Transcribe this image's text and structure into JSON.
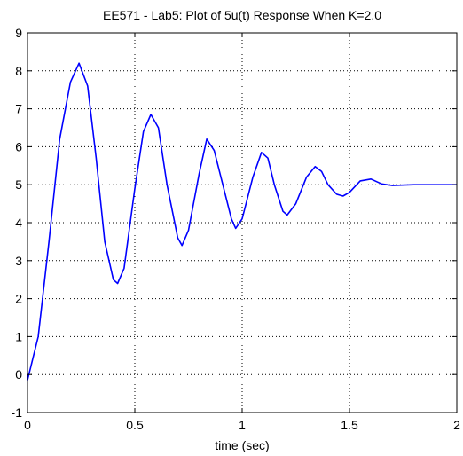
{
  "chart_data": {
    "type": "line",
    "title": "EE571 - Lab5:  Plot of 5u(t) Response When K=2.0",
    "xlabel": "time (sec)",
    "ylabel": "",
    "xlim": [
      0,
      2
    ],
    "ylim": [
      -1,
      9
    ],
    "xticks": [
      0,
      0.5,
      1,
      1.5,
      2
    ],
    "xtick_labels": [
      "0",
      "0.5",
      "1",
      "1.5",
      "2"
    ],
    "yticks": [
      -1,
      0,
      1,
      2,
      3,
      4,
      5,
      6,
      7,
      8,
      9
    ],
    "ytick_labels": [
      "-1",
      "0",
      "1",
      "2",
      "3",
      "4",
      "5",
      "6",
      "7",
      "8",
      "9"
    ],
    "grid": true,
    "grid_style": "dotted",
    "line_color": "#0000ff",
    "series": [
      {
        "x": [
          0,
          0.05,
          0.1,
          0.15,
          0.2,
          0.24,
          0.28,
          0.32,
          0.36,
          0.4,
          0.42,
          0.45,
          0.5,
          0.54,
          0.575,
          0.61,
          0.65,
          0.7,
          0.72,
          0.75,
          0.8,
          0.835,
          0.87,
          0.91,
          0.95,
          0.97,
          1.0,
          1.05,
          1.09,
          1.12,
          1.15,
          1.19,
          1.21,
          1.25,
          1.3,
          1.34,
          1.37,
          1.4,
          1.44,
          1.47,
          1.5,
          1.55,
          1.6,
          1.65,
          1.7,
          1.8,
          1.9,
          2.0
        ],
        "y": [
          -0.15,
          1.0,
          3.5,
          6.2,
          7.7,
          8.2,
          7.6,
          5.7,
          3.5,
          2.5,
          2.4,
          2.8,
          4.9,
          6.4,
          6.85,
          6.5,
          5.0,
          3.6,
          3.4,
          3.8,
          5.3,
          6.2,
          5.9,
          5.0,
          4.1,
          3.85,
          4.1,
          5.2,
          5.85,
          5.7,
          5.0,
          4.3,
          4.2,
          4.5,
          5.2,
          5.48,
          5.35,
          5.0,
          4.75,
          4.7,
          4.8,
          5.1,
          5.15,
          5.02,
          4.98,
          5.0,
          5.0,
          5.0
        ]
      }
    ]
  }
}
